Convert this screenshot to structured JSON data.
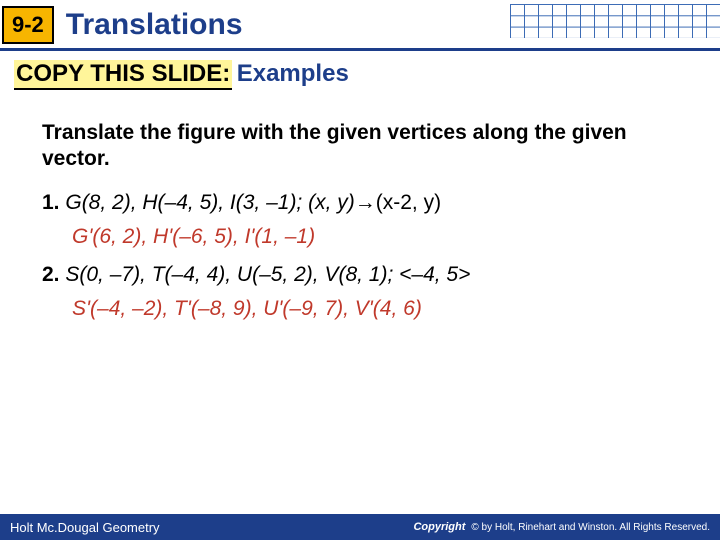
{
  "header": {
    "section_number": "9-2",
    "title": "Translations"
  },
  "subtitle": {
    "copy_label": "COPY THIS SLIDE:",
    "examples": "Examples"
  },
  "instruction": "Translate the figure with the given vertices along the given vector.",
  "problems": [
    {
      "num": "1.",
      "vertices": "G(8, 2), H(–4, 5), I(3, –1); (x, y)",
      "arrow": "→",
      "rule": "(x-2, y)",
      "answer": "G'(6, 2), H'(–6, 5), I'(1, –1)"
    },
    {
      "num": "2.",
      "vertices": "S(0, –7), T(–4, 4), U(–5, 2), V(8, 1); <–4, 5>",
      "answer": "S'(–4, –2), T'(–8, 9), U'(–9, 7), V'(4, 6)"
    }
  ],
  "footer": {
    "left": "Holt Mc.Dougal Geometry",
    "copyright_word": "Copyright",
    "copyright_rest": "© by Holt, Rinehart and Winston. All Rights Reserved."
  },
  "colors": {
    "brand_blue": "#1d3e8a",
    "badge_bg": "#f7b500",
    "highlight": "#fff59a",
    "answer": "#c0392b"
  }
}
